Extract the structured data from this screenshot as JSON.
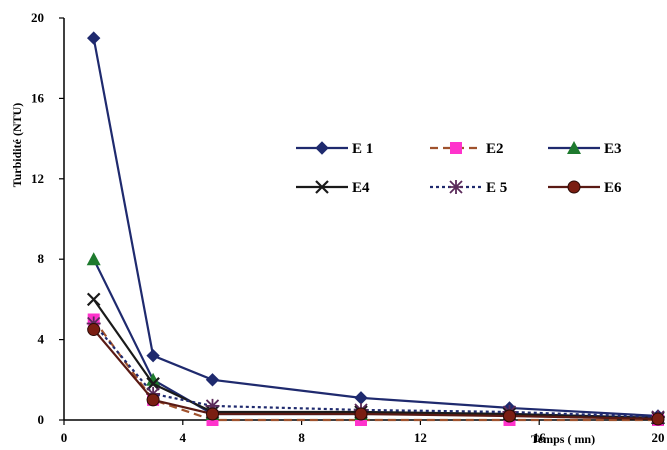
{
  "chart_data": {
    "type": "line",
    "xlabel": "Temps ( mn)",
    "ylabel": "Turbidité (NTU)",
    "xlim": [
      0,
      20
    ],
    "ylim": [
      0,
      20
    ],
    "xticks": [
      0,
      4,
      8,
      12,
      16,
      20
    ],
    "yticks": [
      0,
      4,
      8,
      12,
      16,
      20
    ],
    "grid": false,
    "legend_position": "top-right",
    "x": [
      1,
      3,
      5,
      10,
      15,
      20
    ],
    "series": [
      {
        "name": "E 1",
        "values": [
          19,
          3.2,
          2,
          1.1,
          0.6,
          0.2
        ],
        "color": "#1f2a6e",
        "marker": "diamond",
        "dash": "solid"
      },
      {
        "name": "E2",
        "values": [
          5,
          1,
          0,
          0,
          0,
          0
        ],
        "color": "#a0522d",
        "marker": "square",
        "marker_color": "#ff33cc",
        "dash": "dashed"
      },
      {
        "name": "E3",
        "values": [
          8,
          2,
          0.3,
          0.3,
          0.3,
          0.1
        ],
        "color": "#1f2a6e",
        "marker": "triangle",
        "marker_color": "#1e7a2e",
        "dash": "solid"
      },
      {
        "name": "E4",
        "values": [
          6,
          1.8,
          0.4,
          0.4,
          0.3,
          0.1
        ],
        "color": "#1a1a1a",
        "marker": "x",
        "dash": "solid"
      },
      {
        "name": "E 5",
        "values": [
          4.8,
          1.3,
          0.7,
          0.5,
          0.4,
          0.15
        ],
        "color": "#1f2a6e",
        "marker": "asterisk",
        "marker_color": "#5a2a5a",
        "dash": "dotted"
      },
      {
        "name": "E6",
        "values": [
          4.5,
          1,
          0.3,
          0.3,
          0.2,
          0.05
        ],
        "color": "#5a1a14",
        "marker": "circle",
        "marker_color": "#7a1e12",
        "dash": "solid"
      }
    ]
  }
}
